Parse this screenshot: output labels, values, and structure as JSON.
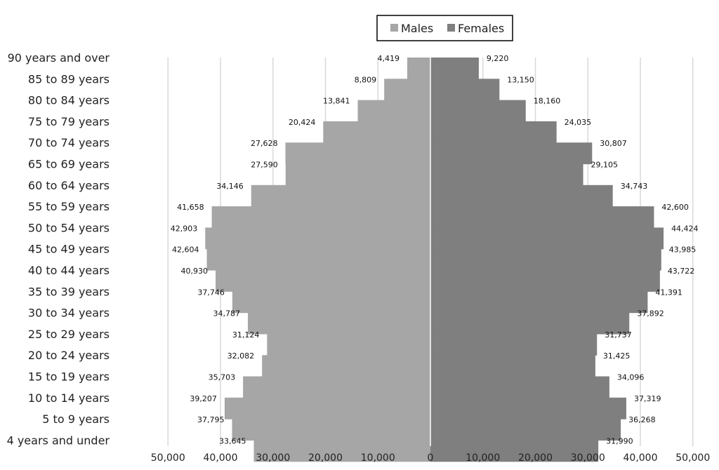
{
  "chart_data": {
    "type": "bar",
    "orientation": "horizontal",
    "layout": "population-pyramid",
    "categories": [
      "90 years and over",
      "85 to 89 years",
      "80 to 84 years",
      "75 to 79 years",
      "70 to 74 years",
      "65 to 69 years",
      "60 to 64 years",
      "55 to 59 years",
      "50 to 54 years",
      "45 to 49 years",
      "40 to 44 years",
      "35 to 39 years",
      "30 to 34 years",
      "25 to 29 years",
      "20 to 24 years",
      "15 to 19 years",
      "10 to 14 years",
      "5 to 9 years",
      "4 years and under"
    ],
    "series": [
      {
        "name": "Males",
        "color": "#a6a6a6",
        "side": "left",
        "values": [
          4419,
          8809,
          13841,
          20424,
          27628,
          27590,
          34146,
          41658,
          42903,
          42604,
          40930,
          37746,
          34787,
          31124,
          32082,
          35703,
          39207,
          37795,
          33645
        ],
        "labels": [
          "4,419",
          "8,809",
          "13,841",
          "20,424",
          "27,628",
          "27,590",
          "34,146",
          "41,658",
          "42,903",
          "42,604",
          "40,930",
          "37,746",
          "34,787",
          "31,124",
          "32,082",
          "35,703",
          "39,207",
          "37,795",
          "33,645"
        ]
      },
      {
        "name": "Females",
        "color": "#7f7f7f",
        "side": "right",
        "values": [
          9220,
          13150,
          18160,
          24035,
          30807,
          29105,
          34743,
          42600,
          44424,
          43985,
          43722,
          41391,
          37892,
          31737,
          31425,
          34096,
          37319,
          36268,
          31990
        ],
        "labels": [
          "9,220",
          "13,150",
          "18,160",
          "24,035",
          "30,807",
          "29,105",
          "34,743",
          "42,600",
          "44,424",
          "43,985",
          "43,722",
          "41,391",
          "37,892",
          "31,737",
          "31,425",
          "34,096",
          "37,319",
          "36,268",
          "31,990"
        ]
      }
    ],
    "xlim": [
      -50000,
      50000
    ],
    "xticks": [
      -50000,
      -40000,
      -30000,
      -20000,
      -10000,
      0,
      10000,
      20000,
      30000,
      40000,
      50000
    ],
    "xtick_labels": [
      "50,000",
      "40,000",
      "30,000",
      "20,000",
      "10,000",
      "0",
      "10,000",
      "20,000",
      "30,000",
      "40,000",
      "50,000"
    ],
    "grid": true,
    "legend": {
      "position": "top-right",
      "entries": [
        "Males",
        "Females"
      ]
    },
    "colors": {
      "grid": "#d9d9d9",
      "center_line": "#ffffff",
      "legend_border": "#000000"
    }
  }
}
